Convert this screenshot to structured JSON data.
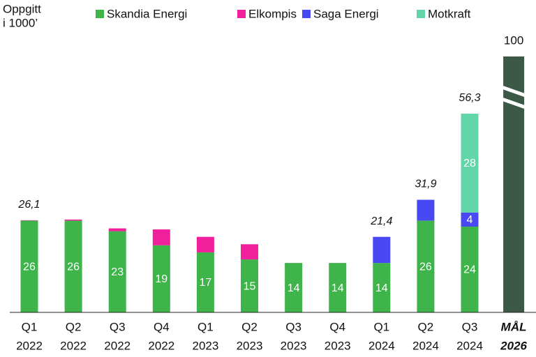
{
  "chart_data": {
    "type": "stacked_bar",
    "y_label": [
      "Oppgitt",
      "i 1000’"
    ],
    "categories": [
      [
        "Q1",
        "2022"
      ],
      [
        "Q2",
        "2022"
      ],
      [
        "Q3",
        "2022"
      ],
      [
        "Q4",
        "2022"
      ],
      [
        "Q1",
        "2023"
      ],
      [
        "Q2",
        "2023"
      ],
      [
        "Q3",
        "2023"
      ],
      [
        "Q4",
        "2023"
      ],
      [
        "Q1",
        "2024"
      ],
      [
        "Q2",
        "2024"
      ],
      [
        "Q3",
        "2024"
      ],
      [
        "MÅL",
        "2026"
      ]
    ],
    "series": [
      {
        "name": "Skandia Energi",
        "color": "#3fb44a",
        "values": [
          26,
          26,
          23,
          19,
          17,
          15,
          14,
          14,
          14,
          26,
          24.3,
          null
        ],
        "value_labels": [
          "26",
          "26",
          "23",
          "19",
          "17",
          "15",
          "14",
          "14",
          "14",
          "26",
          "24",
          null
        ]
      },
      {
        "name": "Elkompis",
        "color": "#f0209c",
        "values": [
          0.1,
          0.3,
          0.8,
          4.5,
          4.4,
          4.3,
          null,
          null,
          null,
          null,
          null,
          null
        ],
        "value_labels": [
          null,
          null,
          null,
          null,
          null,
          null,
          null,
          null,
          null,
          null,
          null,
          null
        ]
      },
      {
        "name": "Saga Energi",
        "color": "#4848f4",
        "values": [
          null,
          null,
          null,
          null,
          null,
          null,
          null,
          null,
          7.4,
          5.9,
          4,
          null
        ],
        "value_labels": [
          null,
          null,
          null,
          null,
          null,
          null,
          null,
          null,
          null,
          null,
          "4",
          null
        ]
      },
      {
        "name": "Motkraft",
        "color": "#62d6a9",
        "values": [
          null,
          null,
          null,
          null,
          null,
          null,
          null,
          null,
          null,
          null,
          28,
          null
        ],
        "value_labels": [
          null,
          null,
          null,
          null,
          null,
          null,
          null,
          null,
          null,
          null,
          "28",
          null
        ]
      }
    ],
    "totals": [
      26.1,
      null,
      null,
      null,
      null,
      null,
      null,
      null,
      21.4,
      31.9,
      56.3,
      null
    ],
    "total_labels": [
      "26,1",
      null,
      null,
      null,
      null,
      null,
      null,
      null,
      "21,4",
      "31,9",
      "56,3",
      null
    ],
    "target": {
      "value": 100,
      "color": "#3c5846"
    },
    "ylim": [
      0,
      72.5
    ]
  }
}
